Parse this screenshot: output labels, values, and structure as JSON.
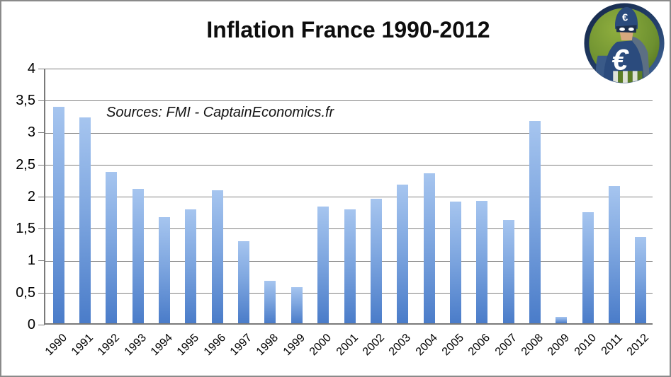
{
  "header": {
    "title": "Inflation France 1990-2012"
  },
  "annotation": {
    "sources": "Sources: FMI - CaptainEconomics.fr"
  },
  "logo": {
    "name": "captain-economics-badge",
    "euro_symbol": "€",
    "ring_color": "#24406b",
    "bg_color": "#6d9030"
  },
  "chart_data": {
    "type": "bar",
    "title": "Inflation France 1990-2012",
    "xlabel": "",
    "ylabel": "",
    "categories": [
      "1990",
      "1991",
      "1992",
      "1993",
      "1994",
      "1995",
      "1996",
      "1997",
      "1998",
      "1999",
      "2000",
      "2001",
      "2002",
      "2003",
      "2004",
      "2005",
      "2006",
      "2007",
      "2008",
      "2009",
      "2010",
      "2011",
      "2012"
    ],
    "values": [
      3.38,
      3.21,
      2.37,
      2.1,
      1.66,
      1.78,
      2.08,
      1.28,
      0.66,
      0.56,
      1.82,
      1.78,
      1.94,
      2.17,
      2.34,
      1.9,
      1.91,
      1.61,
      3.16,
      0.1,
      1.73,
      2.14,
      1.35
    ],
    "ylim": [
      0,
      4
    ],
    "ytick_step": 0.5,
    "ytick_labels_bottom_to_top": [
      "0",
      "0,5",
      "1",
      "1,5",
      "2",
      "2,5",
      "3",
      "3,5",
      "4"
    ],
    "grid": true,
    "legend": "none",
    "bar_color_top": "#a6c5ef",
    "bar_color_bottom": "#4a7cc9",
    "gridline_color": "#808080"
  }
}
